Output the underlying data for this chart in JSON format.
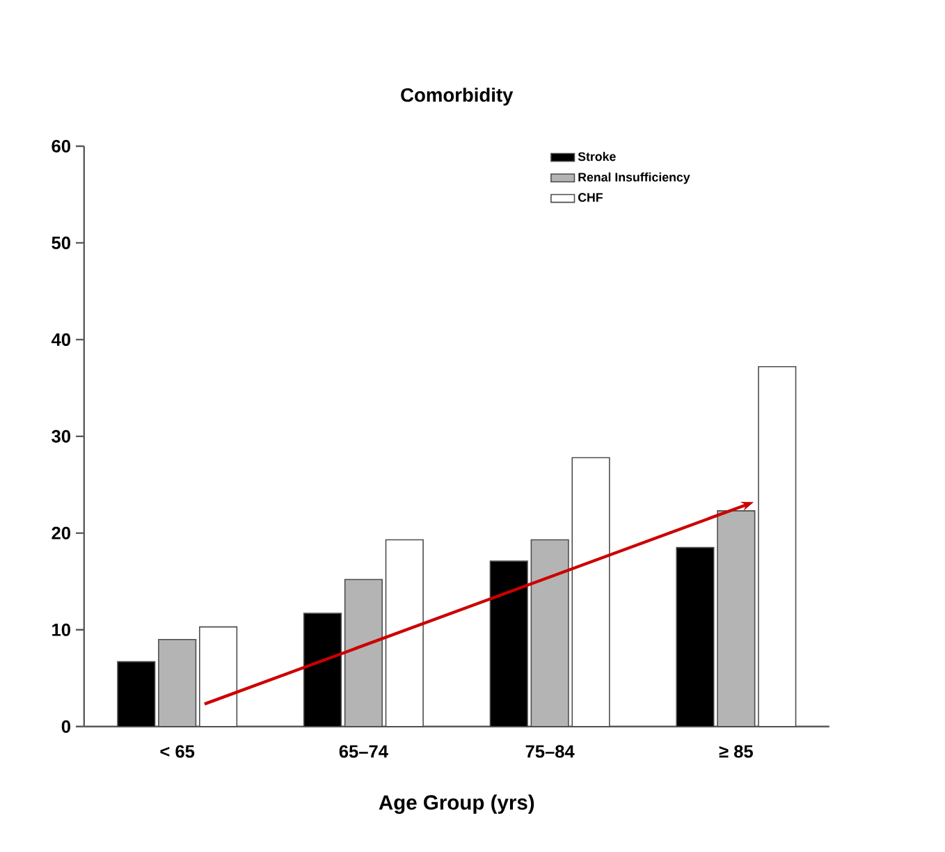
{
  "chart_data": {
    "type": "bar",
    "title": "Comorbidity",
    "xlabel": "Age Group (yrs)",
    "categories": [
      "< 65",
      "65–74",
      "75–84",
      "≥ 85"
    ],
    "series": [
      {
        "name": "Stroke",
        "color": "#000000",
        "values": [
          6.7,
          11.7,
          17.1,
          18.5
        ]
      },
      {
        "name": "Renal Insufficiency",
        "color": "#b4b4b4",
        "values": [
          9.0,
          15.2,
          19.3,
          22.3
        ]
      },
      {
        "name": "CHF",
        "color": "#ffffff",
        "values": [
          10.3,
          19.3,
          27.8,
          37.2
        ]
      }
    ],
    "ylim": [
      0,
      60
    ],
    "yticks": [
      0,
      10,
      20,
      30,
      40,
      50,
      60
    ],
    "grid": false,
    "legend": "top right"
  }
}
